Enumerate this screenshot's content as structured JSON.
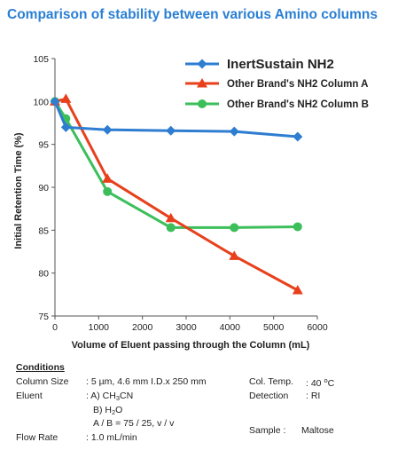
{
  "title": "Comparison of stability between various Amino columns",
  "chart_data": {
    "type": "line",
    "xlabel": "Volume of Eluent passing through the Column (mL)",
    "ylabel": "Initial Retention Time (%)",
    "xlim": [
      0,
      6000
    ],
    "ylim": [
      75,
      105
    ],
    "x_ticks": [
      "0",
      "1000",
      "2000",
      "3000",
      "4000",
      "5000",
      "6000"
    ],
    "y_ticks": [
      "75",
      "80",
      "85",
      "90",
      "95",
      "100",
      "105"
    ],
    "legend_position": "top-right",
    "grid": false,
    "series": [
      {
        "name": "InertSustain NH2",
        "color": "#2e7dd1",
        "marker": "diamond",
        "x": [
          0,
          250,
          1200,
          2650,
          4100,
          5550
        ],
        "y": [
          100,
          97,
          96.7,
          96.6,
          96.5,
          95.9
        ]
      },
      {
        "name": "Other Brand's NH2 Column A",
        "color": "#e8401c",
        "marker": "triangle",
        "x": [
          0,
          250,
          1200,
          2650,
          4100,
          5550
        ],
        "y": [
          100,
          100.3,
          91,
          86.4,
          82,
          78
        ]
      },
      {
        "name": "Other Brand's NH2 Column B",
        "color": "#3cbf5a",
        "marker": "circle",
        "x": [
          0,
          250,
          1200,
          2650,
          4100,
          5550
        ],
        "y": [
          100,
          98,
          89.5,
          85.3,
          85.3,
          85.4
        ]
      }
    ]
  },
  "conditions": {
    "heading": "Conditions",
    "column_size_label": "Column Size",
    "column_size_value": ": 5 µm, 4.6 mm I.D.x 250 mm",
    "eluent_label": "Eluent",
    "eluent_a_prefix": ": A) CH",
    "eluent_a_sub1": "3",
    "eluent_a_mid": "CN",
    "eluent_b_prefix": "B) H",
    "eluent_b_sub": "2",
    "eluent_b_suffix": "O",
    "eluent_ratio": "A / B = 75 / 25, v / v",
    "flow_rate_label": "Flow Rate",
    "flow_rate_value": ": 1.0 mL/min",
    "col_temp_label": "Col. Temp.",
    "col_temp_value": ":   40 ",
    "col_temp_unit_sup": "o",
    "col_temp_unit": "C",
    "detection_label": "Detection",
    "detection_value": ":  RI",
    "sample_label": "Sample :",
    "sample_value": "Maltose"
  }
}
